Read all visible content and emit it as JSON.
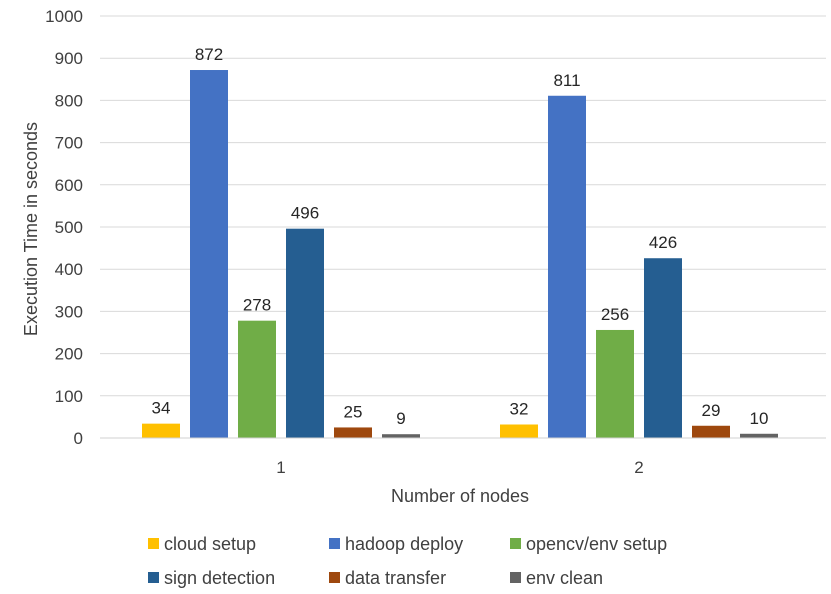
{
  "chart_data": {
    "type": "bar",
    "xlabel": "Number of nodes",
    "ylabel": "Execution Time in seconds",
    "ylim": [
      0,
      1000
    ],
    "yticks": [
      0,
      100,
      200,
      300,
      400,
      500,
      600,
      700,
      800,
      900,
      1000
    ],
    "grid": true,
    "legend_position": "bottom",
    "categories": [
      "1",
      "2"
    ],
    "series": [
      {
        "name": "cloud setup",
        "color": "#FFC000",
        "values": [
          34,
          32
        ]
      },
      {
        "name": "hadoop deploy",
        "color": "#4472C4",
        "values": [
          872,
          811
        ]
      },
      {
        "name": "opencv/env setup",
        "color": "#70AD47",
        "values": [
          278,
          256
        ]
      },
      {
        "name": "sign detection",
        "color": "#255E91",
        "values": [
          496,
          426
        ]
      },
      {
        "name": "data transfer",
        "color": "#9E480E",
        "values": [
          25,
          29
        ]
      },
      {
        "name": "env clean",
        "color": "#636363",
        "values": [
          9,
          10
        ]
      }
    ]
  }
}
